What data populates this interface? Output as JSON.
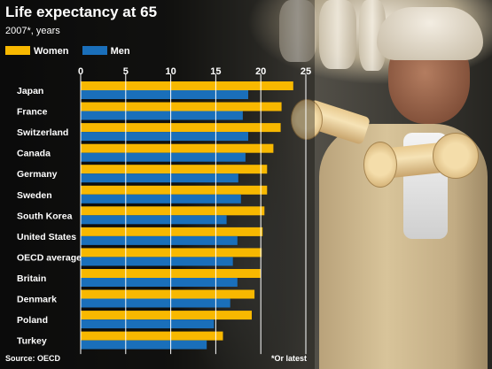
{
  "colors": {
    "women": "#f8b800",
    "men": "#1a6fba",
    "gridline": "#ffffff"
  },
  "chart_data": {
    "type": "bar",
    "orientation": "horizontal",
    "title": "Life expectancy at 65",
    "subtitle": "2007*, years",
    "xlim": [
      0,
      25
    ],
    "xticks": [
      0,
      5,
      10,
      15,
      20,
      25
    ],
    "grid": true,
    "legend_placement": "top-left",
    "categories": [
      "Japan",
      "France",
      "Switzerland",
      "Canada",
      "Germany",
      "Sweden",
      "South Korea",
      "United States",
      "OECD average",
      "Britain",
      "Denmark",
      "Poland",
      "Turkey"
    ],
    "series": [
      {
        "name": "Women",
        "values": [
          23.6,
          22.3,
          22.2,
          21.4,
          20.7,
          20.7,
          20.4,
          20.2,
          20.1,
          20.0,
          19.3,
          19.0,
          15.8
        ]
      },
      {
        "name": "Men",
        "values": [
          18.6,
          18.0,
          18.6,
          18.3,
          17.5,
          17.8,
          16.2,
          17.4,
          16.9,
          17.4,
          16.6,
          14.8,
          14.0
        ]
      }
    ],
    "source": "Source: OECD",
    "note": "*Or latest"
  }
}
